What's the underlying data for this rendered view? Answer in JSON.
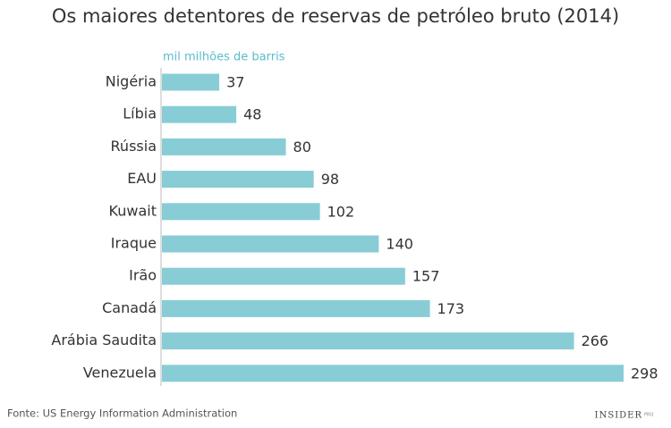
{
  "chart_data": {
    "type": "bar",
    "orientation": "horizontal",
    "title": "Os maiores detentores de reservas de petróleo bruto (2014)",
    "unit_label": "mil milhões de barris",
    "categories": [
      "Nigéria",
      "Líbia",
      "Rússia",
      "EAU",
      "Kuwait",
      "Iraque",
      "Irão",
      "Canadá",
      "Arábia Saudita",
      "Venezuela"
    ],
    "values": [
      37,
      48,
      80,
      98,
      102,
      140,
      157,
      173,
      266,
      298
    ],
    "color": "#88cdd5",
    "source": "Fonte: US Energy Information Administration",
    "logo": "INSIDER",
    "logo_sub": "PRO"
  }
}
